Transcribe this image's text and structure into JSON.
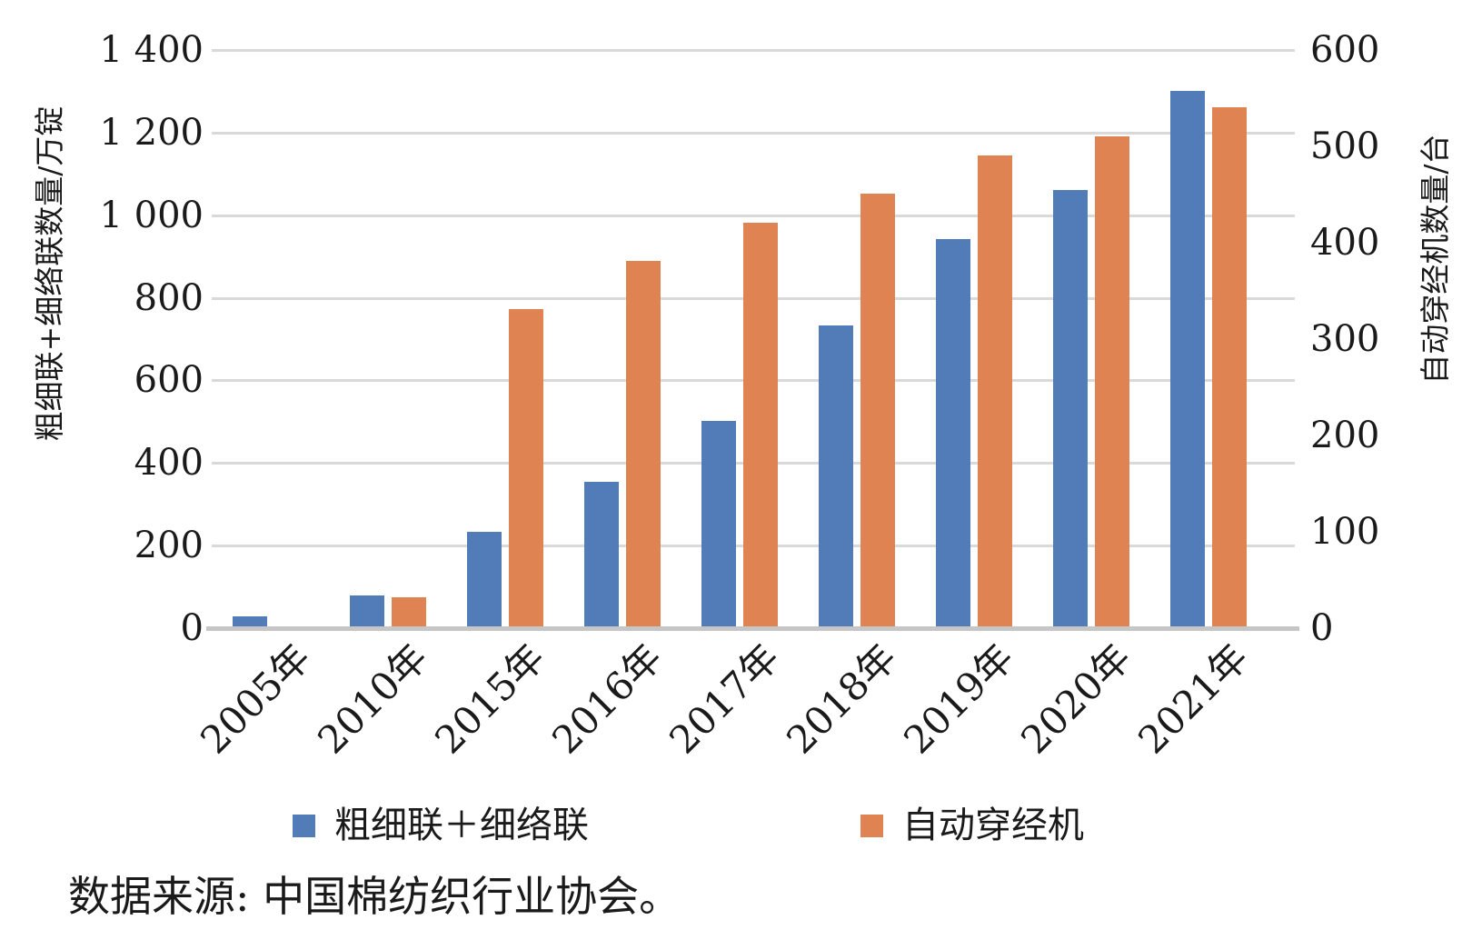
{
  "chart_data": {
    "type": "bar",
    "categories": [
      "2005年",
      "2010年",
      "2015年",
      "2016年",
      "2017年",
      "2018年",
      "2019年",
      "2020年",
      "2021年"
    ],
    "series": [
      {
        "name": "粗细联＋细络联",
        "axis": "left",
        "color": "#527CB8",
        "values": [
          25,
          75,
          230,
          350,
          500,
          730,
          940,
          1060,
          1300
        ]
      },
      {
        "name": "自动穿经机",
        "axis": "right",
        "color": "#E08352",
        "values": [
          null,
          30,
          330,
          380,
          420,
          450,
          490,
          510,
          540
        ]
      }
    ],
    "left_axis": {
      "title": "粗细联+细络联数量/万锭",
      "min": 0,
      "max": 1400,
      "tick_labels": [
        "1 400",
        "1 200",
        "1 000",
        "800",
        "600",
        "400",
        "200",
        "0"
      ]
    },
    "right_axis": {
      "title": "自动穿经机数量/台",
      "min": 0,
      "max": 600,
      "tick_labels": [
        "600",
        "500",
        "400",
        "300",
        "200",
        "100",
        "0"
      ]
    },
    "grid": true,
    "legend_position": "bottom",
    "source_note": "数据来源: 中国棉纺织行业协会。",
    "colors": {
      "grid": "#D9D9D9",
      "axis_line": "#C6C6C6",
      "text": "#1A1A1A"
    }
  }
}
